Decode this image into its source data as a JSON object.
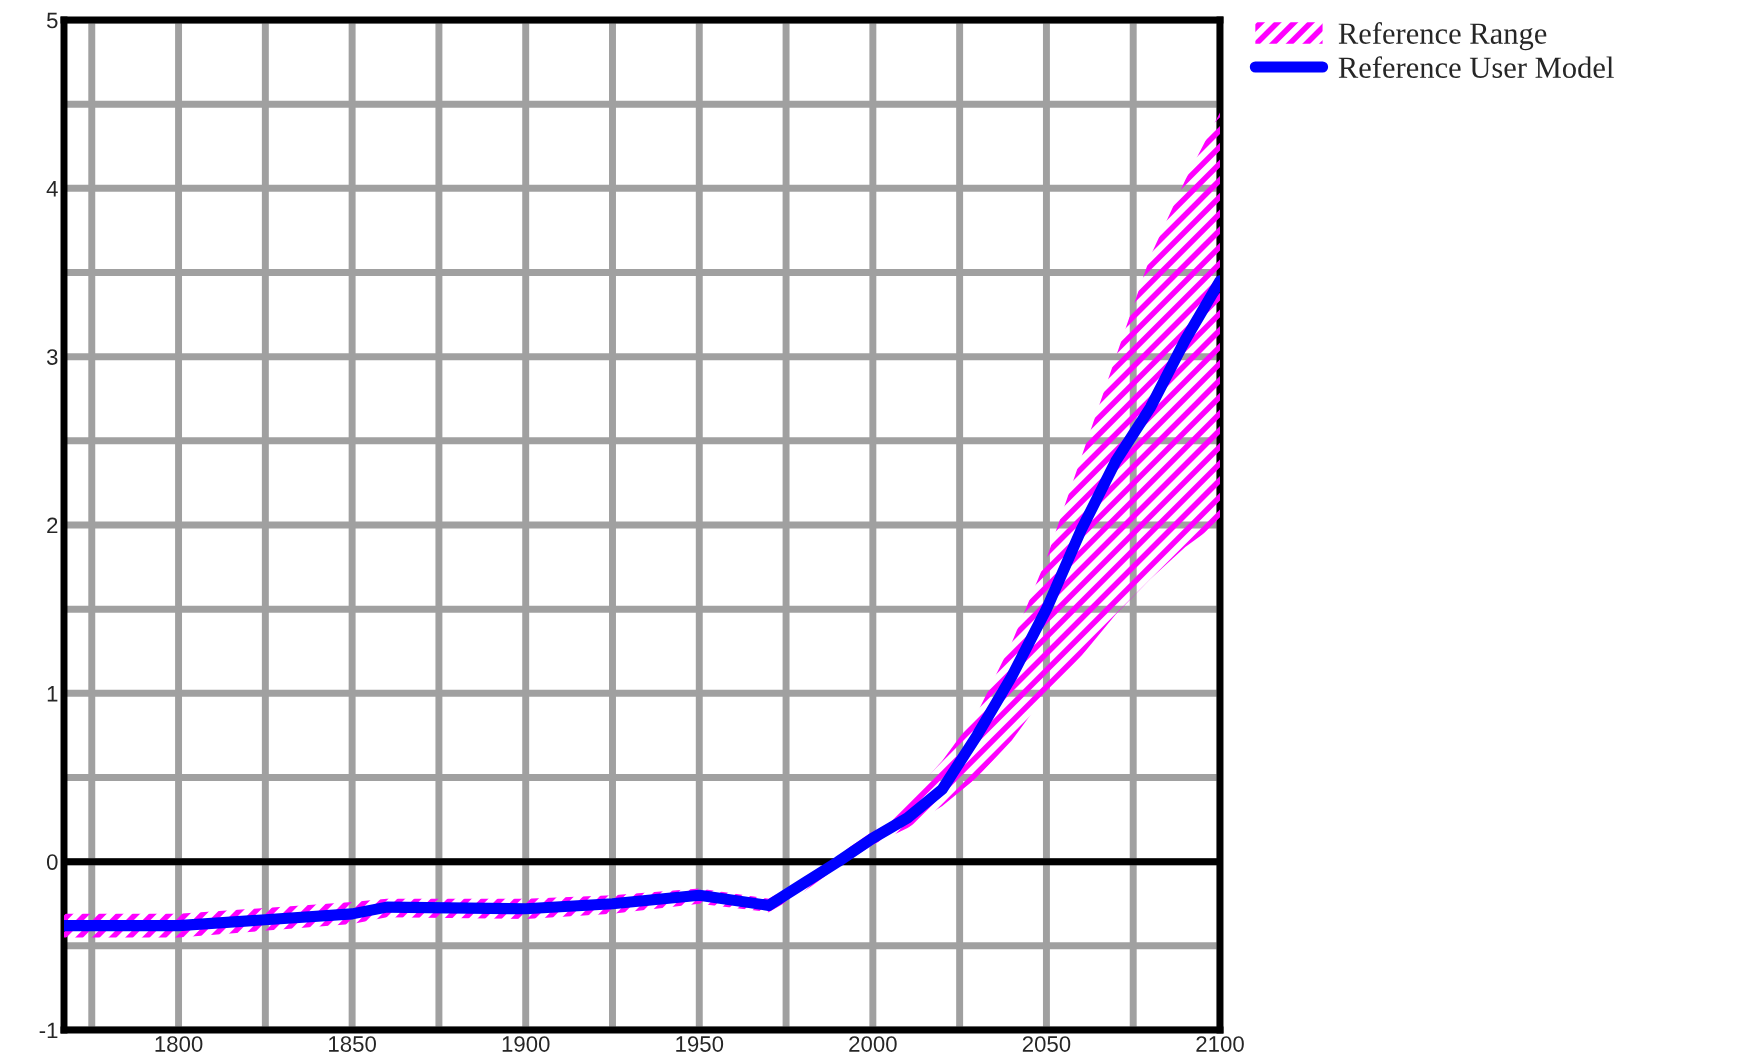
{
  "chart_data": {
    "type": "line",
    "xlim": [
      1767,
      2100
    ],
    "xticks": [
      {
        "value": 1775,
        "label": null
      },
      1800,
      {
        "value": 1825,
        "label": null
      },
      1850,
      {
        "value": 1875,
        "label": null
      },
      1900,
      {
        "value": 1925,
        "label": null
      },
      1950,
      {
        "value": 1975,
        "label": null
      },
      2000,
      {
        "value": 2025,
        "label": null
      },
      2050,
      {
        "value": 2075,
        "label": null
      },
      2100
    ],
    "ylim": [
      -1,
      5
    ],
    "yticks": [
      -1,
      {
        "value": -0.5,
        "label": null
      },
      0,
      {
        "value": 0.5,
        "label": null
      },
      1,
      {
        "value": 1.5,
        "label": null
      },
      2,
      {
        "value": 2.5,
        "label": null
      },
      3,
      {
        "value": 3.5,
        "label": null
      },
      4,
      {
        "value": 4.5,
        "label": null
      },
      5
    ],
    "grid": true,
    "legend": "top right",
    "ref_lines": [
      {
        "axis": "y",
        "value": 0,
        "color": "#000000"
      }
    ],
    "series": [
      {
        "name": "Reference Range",
        "color": "#ff00ff",
        "x": [
          1767,
          1800,
          1850,
          1860,
          1900,
          1925,
          1950,
          1970,
          1980,
          1990,
          2000,
          2010,
          2020,
          2030,
          2040,
          2050,
          2060,
          2070,
          2080,
          2090,
          2100
        ],
        "values": [
          null,
          null,
          null,
          null,
          null,
          null,
          null,
          null,
          null,
          null,
          null,
          null,
          null,
          null,
          null,
          null,
          null,
          null,
          null,
          null,
          null
        ],
        "lower": [
          -0.45,
          -0.45,
          -0.37,
          -0.33,
          -0.34,
          -0.31,
          -0.25,
          -0.3,
          -0.18,
          -0.03,
          0.1,
          0.2,
          0.33,
          0.5,
          0.72,
          1.0,
          1.22,
          1.47,
          1.68,
          1.87,
          2.02
        ],
        "upper": [
          -0.31,
          -0.31,
          -0.24,
          -0.22,
          -0.22,
          -0.2,
          -0.16,
          -0.22,
          -0.1,
          0.04,
          0.18,
          0.37,
          0.6,
          0.88,
          1.3,
          1.8,
          2.4,
          3.0,
          3.6,
          4.05,
          4.45
        ]
      },
      {
        "name": "Reference User Model",
        "type": "line",
        "color": "#0000ff",
        "x": [
          1767,
          1800,
          1850,
          1860,
          1900,
          1925,
          1950,
          1970,
          1980,
          1990,
          2000,
          2010,
          2020,
          2030,
          2040,
          2050,
          2060,
          2070,
          2080,
          2090,
          2100
        ],
        "values": [
          -0.38,
          -0.38,
          -0.31,
          -0.27,
          -0.28,
          -0.25,
          -0.2,
          -0.26,
          -0.13,
          0.0,
          0.14,
          0.26,
          0.43,
          0.75,
          1.1,
          1.5,
          1.97,
          2.38,
          2.7,
          3.1,
          3.45
        ]
      }
    ]
  }
}
